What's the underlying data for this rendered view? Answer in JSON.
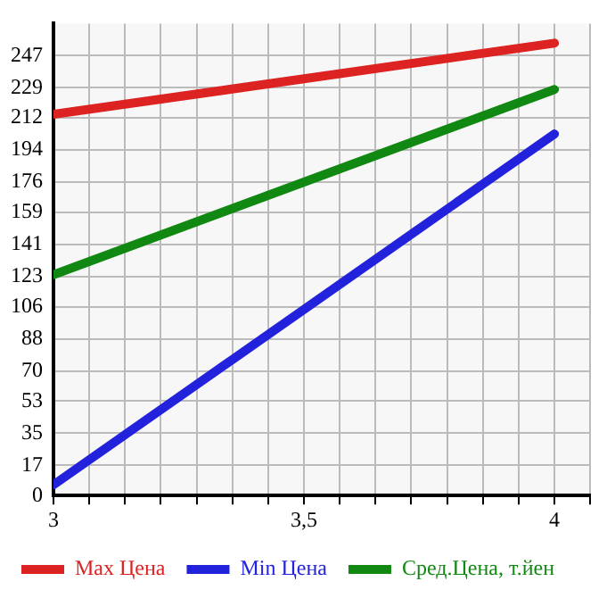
{
  "chart_data": {
    "type": "line",
    "x": [
      3,
      4
    ],
    "series": [
      {
        "name": "Max Цена",
        "color": "#dd2222",
        "values": [
          214,
          254
        ]
      },
      {
        "name": "Min Цена",
        "color": "#2222dd",
        "values": [
          6,
          203
        ]
      },
      {
        "name": "Сред.Цена, т.йен",
        "color": "#118811",
        "values": [
          124,
          228
        ]
      }
    ],
    "xlim": [
      3,
      4.071
    ],
    "xticks": [
      3,
      {
        "value": 3.071,
        "label": null
      },
      {
        "value": 3.143,
        "label": null
      },
      {
        "value": 3.214,
        "label": null
      },
      {
        "value": 3.286,
        "label": null
      },
      {
        "value": 3.357,
        "label": null
      },
      {
        "value": 3.429,
        "label": null
      },
      {
        "value": 3.5,
        "label": "3,5"
      },
      {
        "value": 3.571,
        "label": null
      },
      {
        "value": 3.643,
        "label": null
      },
      {
        "value": 3.714,
        "label": null
      },
      {
        "value": 3.786,
        "label": null
      },
      {
        "value": 3.857,
        "label": null
      },
      {
        "value": 3.929,
        "label": null
      },
      4,
      {
        "value": 4.071,
        "label": null
      }
    ],
    "ylim": [
      0,
      265
    ],
    "yticks": [
      0,
      17,
      35,
      53,
      70,
      88,
      106,
      123,
      141,
      159,
      176,
      194,
      212,
      229,
      247
    ],
    "grid": true,
    "legend": "bottom",
    "marker": "none",
    "line_style": "solid"
  }
}
